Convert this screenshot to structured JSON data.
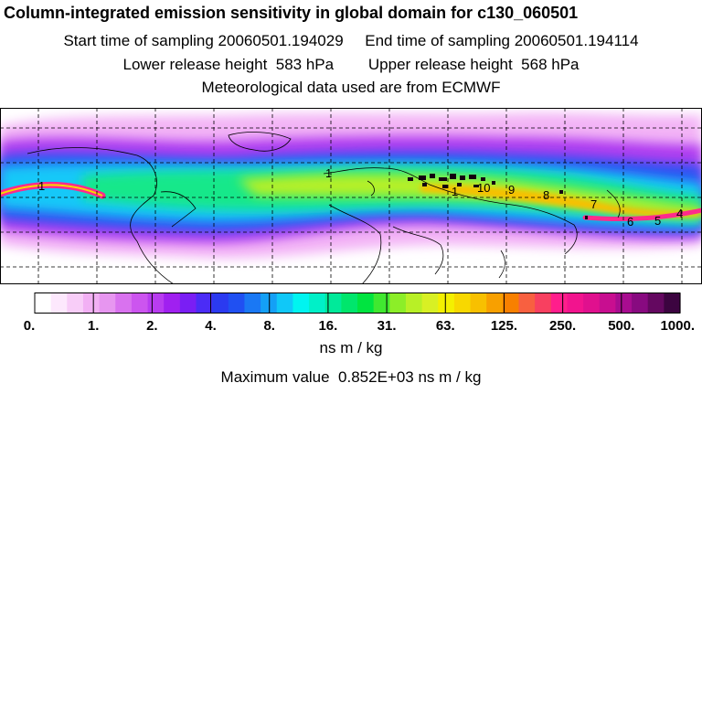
{
  "header": {
    "title": "Column-integrated emission sensitivity in global domain for c130_060501",
    "sampling": "Start time of sampling 20060501.194029     End time of sampling 20060501.194114",
    "release": "Lower release height  583 hPa        Upper release height  568 hPa",
    "met": "Meteorological data used are from ECMWF"
  },
  "map": {
    "track_labels": [
      "1",
      "1",
      "1",
      "10",
      "9",
      "8",
      "7",
      "6",
      "5",
      "4"
    ],
    "land_color": "#ffffff",
    "grid": true
  },
  "colorbar": {
    "tick_labels": [
      "0.",
      "1.",
      "2.",
      "4.",
      "8.",
      "16.",
      "31.",
      "63.",
      "125.",
      "250.",
      "500.",
      "1000."
    ],
    "colors": [
      "#ffffff",
      "#fde8fd",
      "#f8cdf8",
      "#f2b0f4",
      "#e796f0",
      "#d972ef",
      "#cc55ef",
      "#b83cf0",
      "#a020f0",
      "#7a1ef4",
      "#4b2cf6",
      "#2b3af0",
      "#2050f2",
      "#1a78f4",
      "#14a0f6",
      "#10c8f8",
      "#00f4f0",
      "#00f0c8",
      "#00ea9a",
      "#00e66c",
      "#00e440",
      "#40e830",
      "#8cee28",
      "#b8f026",
      "#d8f024",
      "#f4f000",
      "#f8d800",
      "#f8c000",
      "#f8a000",
      "#f88000",
      "#f86040",
      "#f84060",
      "#ff1e8c",
      "#f2148e",
      "#e0108e",
      "#c80e90",
      "#a80c90",
      "#880a80",
      "#640860",
      "#3c0440"
    ]
  },
  "units": "ns m / kg",
  "max_value": "Maximum value  0.852E+03 ns m / kg"
}
